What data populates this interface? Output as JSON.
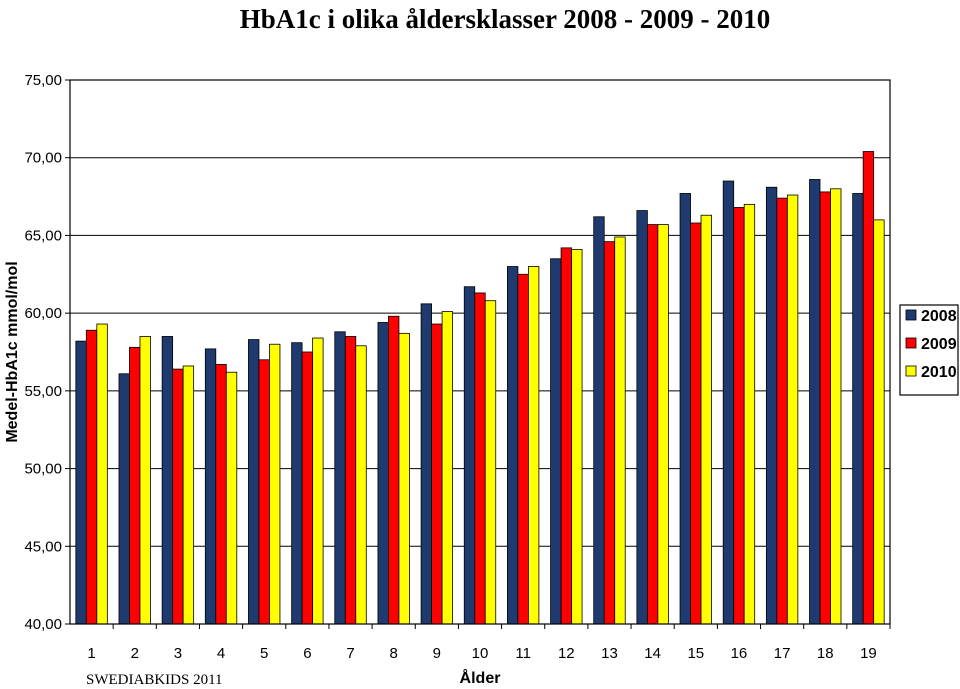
{
  "chart_data": {
    "type": "bar",
    "title": "HbA1c i olika åldersklasser 2008 - 2009 - 2010",
    "xlabel": "Ålder",
    "ylabel": "Medel-HbA1c mmol/mol",
    "footer": "SWEDIABKIDS 2011",
    "ylim": [
      40,
      75
    ],
    "yticks": [
      "40,00",
      "45,00",
      "50,00",
      "55,00",
      "60,00",
      "65,00",
      "70,00",
      "75,00"
    ],
    "categories": [
      "1",
      "2",
      "3",
      "4",
      "5",
      "6",
      "7",
      "8",
      "9",
      "10",
      "11",
      "12",
      "13",
      "14",
      "15",
      "16",
      "17",
      "18",
      "19"
    ],
    "grid": true,
    "legend_position": "right",
    "series": [
      {
        "name": "2008",
        "color": "#1f3a6e",
        "values": [
          58.2,
          56.1,
          58.5,
          57.7,
          58.3,
          58.1,
          58.8,
          59.4,
          60.6,
          61.7,
          63.0,
          63.5,
          66.2,
          66.6,
          67.7,
          68.5,
          68.1,
          68.6,
          67.7
        ]
      },
      {
        "name": "2009",
        "color": "#ff0000",
        "values": [
          58.9,
          57.8,
          56.4,
          56.7,
          57.0,
          57.5,
          58.5,
          59.8,
          59.3,
          61.3,
          62.5,
          64.2,
          64.6,
          65.7,
          65.8,
          66.8,
          67.4,
          67.8,
          70.4
        ]
      },
      {
        "name": "2010",
        "color": "#ffff00",
        "values": [
          59.3,
          58.5,
          56.6,
          56.2,
          58.0,
          58.4,
          57.9,
          58.7,
          60.1,
          60.8,
          63.0,
          64.1,
          64.9,
          65.7,
          66.3,
          67.0,
          67.6,
          68.0,
          66.0
        ]
      }
    ]
  }
}
